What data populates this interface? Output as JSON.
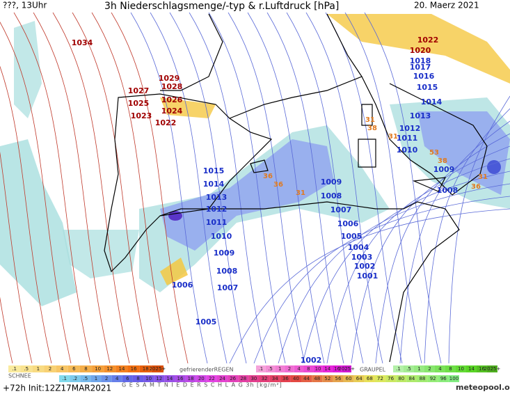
{
  "header": {
    "run_time": "???, 13Uhr",
    "title": "3h Niederschlagsmenge/-typ & r.Luftdruck [hPa]",
    "date": "20. Maerz 2021"
  },
  "high_pressure_labels": [
    "1034",
    "1029",
    "1028",
    "1027",
    "1026",
    "1025",
    "1024",
    "1023",
    "1022",
    "1022",
    "1020"
  ],
  "low_pressure_labels": [
    "1018",
    "1017",
    "1016",
    "1015",
    "1014",
    "1013",
    "1012",
    "1011",
    "1010",
    "1009",
    "1008",
    "1015",
    "1014",
    "1013",
    "1012",
    "1011",
    "1010",
    "1009",
    "1008",
    "1007",
    "1006",
    "1005",
    "1002",
    "1009",
    "1008",
    "1007",
    "1006",
    "1005",
    "1004",
    "1003",
    "1002",
    "1001"
  ],
  "precip_labels": [
    "31",
    "38",
    "31",
    "53",
    "38",
    "36",
    "31",
    "36",
    "36",
    "31"
  ],
  "legend": {
    "snow": {
      "label": "SCHNEE",
      "steps": [
        ".1",
        ".5",
        "1",
        "2",
        "4",
        "6",
        "8",
        "10",
        "12",
        "14",
        "16",
        "18",
        "2025+"
      ]
    },
    "freezing_rain": {
      "label": "gefrierenderREGEN",
      "steps": [
        ".1",
        ".5",
        "1",
        "2",
        "4",
        "8",
        "10",
        "14",
        "16",
        "2025+"
      ]
    },
    "graupel": {
      "label": "GRAUPEL",
      "steps": [
        ".1",
        ".5",
        "1",
        "2",
        "4",
        "8",
        "10",
        "14",
        "16",
        "2025+"
      ]
    },
    "total": {
      "label": "G E S A M T N I E D E R S C H L A G  3h  [kg/m²]",
      "steps": [
        ".1",
        ".2",
        ".5",
        "1",
        "2",
        "4",
        "6",
        "8",
        "10",
        "12",
        "14",
        "16",
        "18",
        "20",
        "22",
        "24",
        "26",
        "28",
        "30",
        "32",
        "34",
        "36",
        "40",
        "44",
        "48",
        "52",
        "56",
        "60",
        "64",
        "68",
        "72",
        "76",
        "80",
        "84",
        "88",
        "92",
        "96",
        "100"
      ]
    }
  },
  "footer": {
    "init": "+72h Init:12Z17MAR2021",
    "brand": "meteopool.org"
  }
}
